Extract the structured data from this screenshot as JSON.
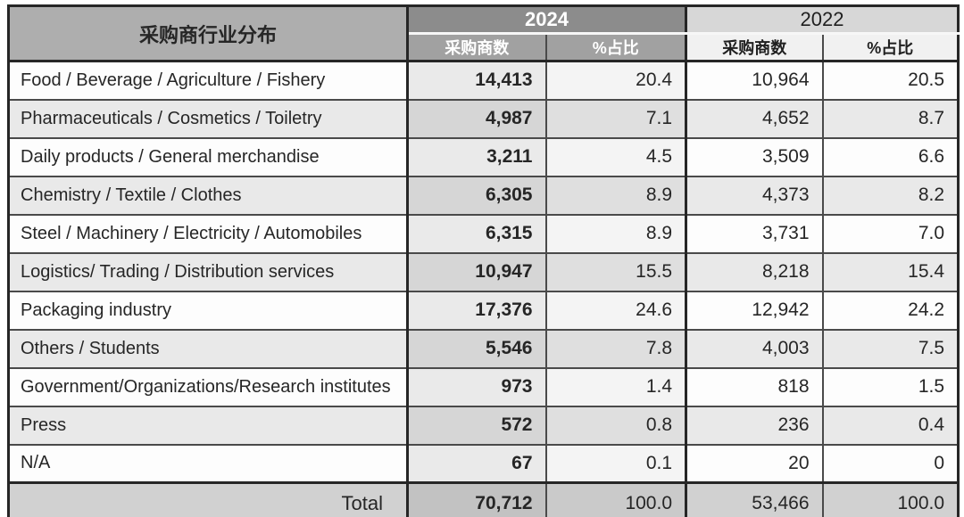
{
  "colors": {
    "outer_border": "#262626",
    "inner_border": "#4a4a4a",
    "title_header_bg": "#aeaeae",
    "year_2024_bg": "#8c8c8c",
    "year_2024_text": "#ffffff",
    "sub_2024_bg": "#a1a1a1",
    "year_2022_bg": "#d7d7d7",
    "sub_2022_bg": "#f1f1f1",
    "row_light_bg": "#fdfdfd",
    "row_shade_bg": "#e9e9e9",
    "total_row_bg": "#d1d1d1"
  },
  "chart_data": {
    "type": "table",
    "title": "采购商行业分布",
    "column_groups": [
      {
        "label": "2024",
        "columns": [
          "采购商数",
          "%占比"
        ]
      },
      {
        "label": "2022",
        "columns": [
          "采购商数",
          "%占比"
        ]
      }
    ],
    "rows": [
      {
        "industry": "Food / Beverage / Agriculture / Fishery",
        "values": [
          "14,413",
          "20.4",
          "10,964",
          "20.5"
        ]
      },
      {
        "industry": "Pharmaceuticals / Cosmetics / Toiletry",
        "values": [
          "4,987",
          "7.1",
          "4,652",
          "8.7"
        ]
      },
      {
        "industry": "Daily products / General merchandise",
        "values": [
          "3,211",
          "4.5",
          "3,509",
          "6.6"
        ]
      },
      {
        "industry": "Chemistry / Textile / Clothes",
        "values": [
          "6,305",
          "8.9",
          "4,373",
          "8.2"
        ]
      },
      {
        "industry": "Steel / Machinery / Electricity / Automobiles",
        "values": [
          "6,315",
          "8.9",
          "3,731",
          "7.0"
        ]
      },
      {
        "industry": "Logistics/ Trading / Distribution services",
        "values": [
          "10,947",
          "15.5",
          "8,218",
          "15.4"
        ]
      },
      {
        "industry": "Packaging industry",
        "values": [
          "17,376",
          "24.6",
          "12,942",
          "24.2"
        ]
      },
      {
        "industry": "Others / Students",
        "values": [
          "5,546",
          "7.8",
          "4,003",
          "7.5"
        ]
      },
      {
        "industry": "Government/Organizations/Research institutes",
        "values": [
          "973",
          "1.4",
          "818",
          "1.5"
        ]
      },
      {
        "industry": "Press",
        "values": [
          "572",
          "0.8",
          "236",
          "0.4"
        ]
      },
      {
        "industry": "N/A",
        "values": [
          "67",
          "0.1",
          "20",
          "0"
        ]
      }
    ],
    "total_row": {
      "industry": "Total",
      "values": [
        "70,712",
        "100.0",
        "53,466",
        "100.0"
      ]
    }
  }
}
